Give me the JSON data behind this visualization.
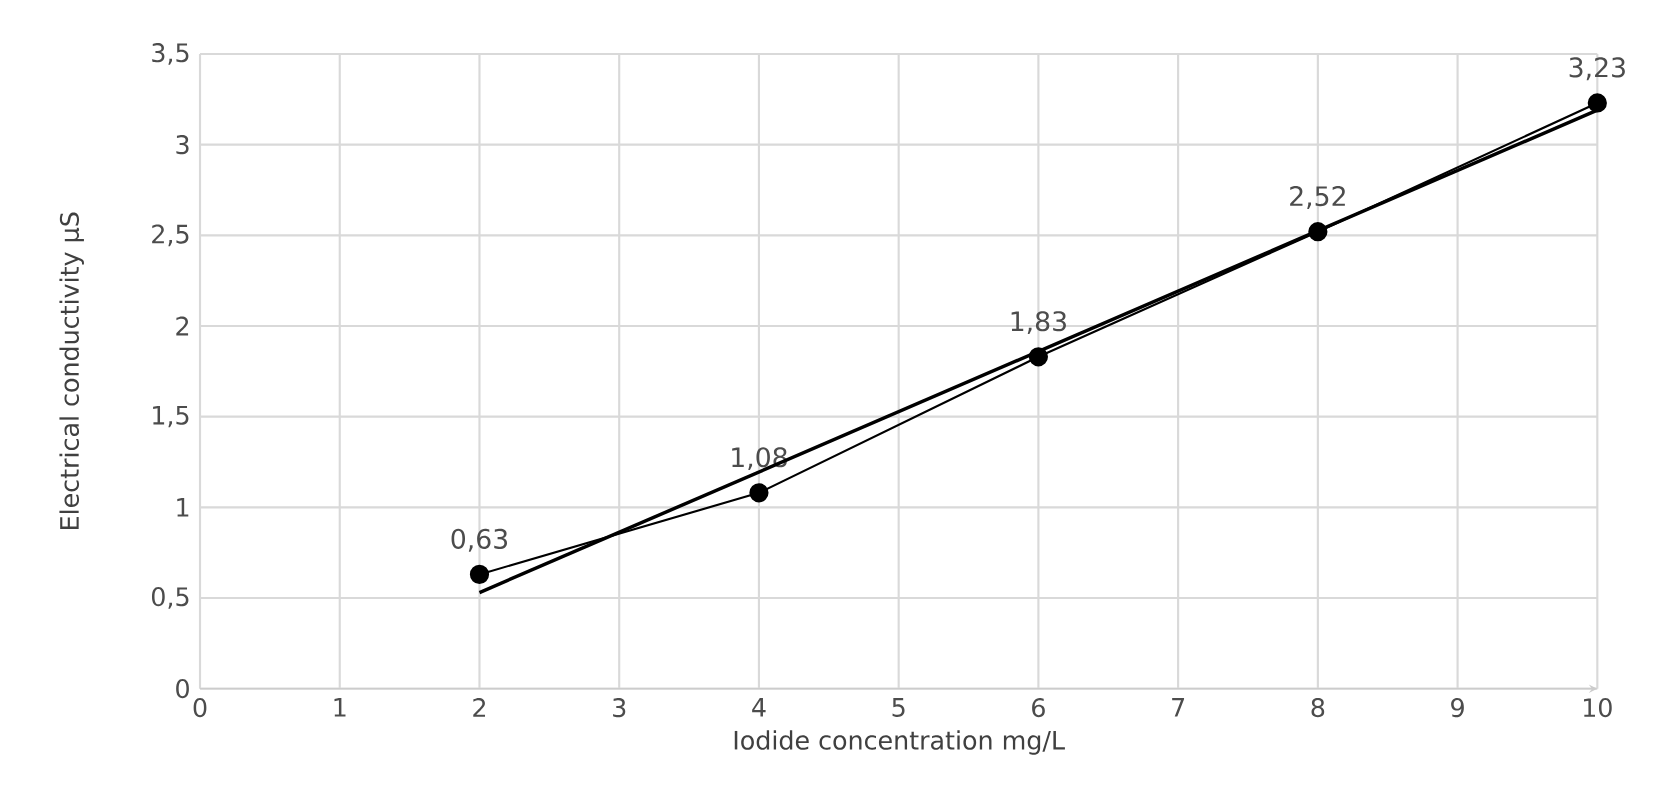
{
  "chart_data": {
    "type": "line",
    "xlabel": "Iodide concentration mg/L",
    "ylabel": "Electrical conductivity µS",
    "x": [
      2,
      4,
      6,
      8,
      10
    ],
    "series": [
      {
        "color": "#000000",
        "values": [
          0.63,
          1.08,
          1.83,
          2.52,
          3.23
        ],
        "marker": "circle",
        "value_labels": [
          "0,63",
          "1,08",
          "1,83",
          "2,52",
          "3,23"
        ]
      },
      {
        "type": "line",
        "color": "#000000",
        "x": [
          2,
          10
        ],
        "values": [
          0.53,
          3.19
        ],
        "marker": "none"
      }
    ],
    "xlim": [
      0,
      10
    ],
    "ylim": [
      0,
      3.5
    ],
    "xticks": [
      0,
      1,
      2,
      3,
      4,
      5,
      6,
      7,
      8,
      9,
      10
    ],
    "yticks": [
      0,
      {
        "value": 0.5,
        "label": "0,5"
      },
      1,
      {
        "value": 1.5,
        "label": "1,5"
      },
      2,
      {
        "value": 2.5,
        "label": "2,5"
      },
      3,
      {
        "value": 3.5,
        "label": "3,5"
      }
    ],
    "grid": true,
    "legend": false,
    "line_style": "solid"
  }
}
